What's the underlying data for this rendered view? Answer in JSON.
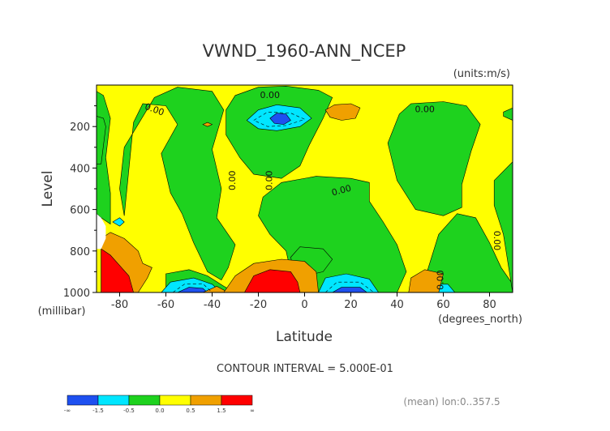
{
  "chart_data": {
    "type": "heatmap",
    "title": "VWND_1960-ANN_NCEP",
    "units_label": "(units:m/s)",
    "ylabel": "Level",
    "yunits_label": "(millibar)",
    "xlabel": "Latitude",
    "xunits_label": "(degrees_north)",
    "xlim": [
      -90,
      90
    ],
    "ylim": [
      0,
      1000
    ],
    "y_inverted": true,
    "x_ticks": [
      {
        "value": -80,
        "label": "-80"
      },
      {
        "value": -60,
        "label": "-60"
      },
      {
        "value": -40,
        "label": "-40"
      },
      {
        "value": -20,
        "label": "-20"
      },
      {
        "value": 0,
        "label": "0"
      },
      {
        "value": 20,
        "label": "20"
      },
      {
        "value": 40,
        "label": "40"
      },
      {
        "value": 60,
        "label": "60"
      },
      {
        "value": 80,
        "label": "80"
      }
    ],
    "y_ticks": [
      {
        "value": 200,
        "label": "200"
      },
      {
        "value": 400,
        "label": "400"
      },
      {
        "value": 600,
        "label": "600"
      },
      {
        "value": 800,
        "label": "800"
      },
      {
        "value": 1000,
        "label": "1000"
      }
    ],
    "contour_interval_text": "CONTOUR INTERVAL = 5.000E-01",
    "contour_labels": [
      {
        "text": "0.00",
        "lat": -15,
        "lev": 50,
        "rot": 0
      },
      {
        "text": "0.00",
        "lat": -65,
        "lev": 120,
        "rot": 20
      },
      {
        "text": "0.00",
        "lat": 52,
        "lev": 120,
        "rot": 0
      },
      {
        "text": "0.00",
        "lat": -31,
        "lev": 460,
        "rot": -90
      },
      {
        "text": "0.00",
        "lat": -15,
        "lev": 460,
        "rot": -90
      },
      {
        "text": "0.00",
        "lat": 16,
        "lev": 510,
        "rot": -15
      },
      {
        "text": "0.00",
        "lat": 83,
        "lev": 750,
        "rot": 90
      },
      {
        "text": "0.00",
        "lat": 59,
        "lev": 940,
        "rot": -90
      }
    ],
    "regions": [
      {
        "class": "g",
        "pts": [
          [
            -90,
            30
          ],
          [
            -90,
            620
          ],
          [
            -88,
            640
          ],
          [
            -84,
            670
          ],
          [
            -84,
            520
          ],
          [
            -86,
            350
          ],
          [
            -84,
            160
          ],
          [
            -87,
            50
          ]
        ]
      },
      {
        "class": "g",
        "pts": [
          [
            -78,
            630
          ],
          [
            -74,
            180
          ],
          [
            -70,
            90
          ],
          [
            -60,
            100
          ],
          [
            -55,
            190
          ],
          [
            -62,
            330
          ],
          [
            -58,
            520
          ],
          [
            -53,
            620
          ],
          [
            -48,
            760
          ],
          [
            -42,
            900
          ],
          [
            -36,
            940
          ],
          [
            -33,
            880
          ],
          [
            -30,
            770
          ],
          [
            -38,
            640
          ],
          [
            -36,
            500
          ],
          [
            -40,
            310
          ],
          [
            -35,
            120
          ],
          [
            -40,
            30
          ],
          [
            -55,
            10
          ],
          [
            -65,
            60
          ],
          [
            -78,
            300
          ],
          [
            -80,
            500
          ]
        ]
      },
      {
        "class": "g",
        "pts": [
          [
            -60,
            1000
          ],
          [
            -60,
            910
          ],
          [
            -50,
            890
          ],
          [
            -42,
            920
          ],
          [
            -35,
            970
          ],
          [
            -30,
            1000
          ]
        ]
      },
      {
        "class": "g",
        "pts": [
          [
            -34,
            120
          ],
          [
            -30,
            50
          ],
          [
            -20,
            10
          ],
          [
            -8,
            5
          ],
          [
            6,
            25
          ],
          [
            12,
            60
          ],
          [
            8,
            160
          ],
          [
            2,
            290
          ],
          [
            -2,
            390
          ],
          [
            -10,
            450
          ],
          [
            -22,
            430
          ],
          [
            -28,
            350
          ],
          [
            -34,
            240
          ]
        ]
      },
      {
        "class": "g",
        "pts": [
          [
            -18,
            540
          ],
          [
            -10,
            470
          ],
          [
            5,
            440
          ],
          [
            20,
            450
          ],
          [
            28,
            470
          ],
          [
            28,
            560
          ],
          [
            34,
            660
          ],
          [
            40,
            770
          ],
          [
            44,
            900
          ],
          [
            40,
            1000
          ],
          [
            -2,
            1000
          ],
          [
            -6,
            900
          ],
          [
            -8,
            800
          ],
          [
            -15,
            720
          ],
          [
            -20,
            630
          ]
        ]
      },
      {
        "class": "g",
        "pts": [
          [
            -6,
            830
          ],
          [
            -2,
            780
          ],
          [
            8,
            790
          ],
          [
            12,
            840
          ],
          [
            8,
            900
          ],
          [
            0,
            920
          ],
          [
            -5,
            880
          ]
        ]
      },
      {
        "class": "g",
        "pts": [
          [
            41,
            140
          ],
          [
            46,
            90
          ],
          [
            60,
            80
          ],
          [
            70,
            100
          ],
          [
            76,
            190
          ],
          [
            72,
            320
          ],
          [
            68,
            480
          ],
          [
            68,
            590
          ],
          [
            60,
            630
          ],
          [
            48,
            600
          ],
          [
            40,
            460
          ],
          [
            36,
            280
          ]
        ]
      },
      {
        "class": "g",
        "pts": [
          [
            50,
            1000
          ],
          [
            53,
            900
          ],
          [
            58,
            720
          ],
          [
            66,
            620
          ],
          [
            74,
            640
          ],
          [
            80,
            760
          ],
          [
            85,
            880
          ],
          [
            90,
            960
          ],
          [
            90,
            1000
          ]
        ]
      },
      {
        "class": "g",
        "pts": [
          [
            82,
            460
          ],
          [
            90,
            370
          ],
          [
            90,
            1000
          ],
          [
            86,
            720
          ],
          [
            82,
            580
          ]
        ]
      },
      {
        "class": "g",
        "pts": [
          [
            -90,
            150
          ],
          [
            -87,
            160
          ],
          [
            -86,
            200
          ],
          [
            -88,
            380
          ],
          [
            -90,
            380
          ]
        ]
      },
      {
        "class": "g",
        "pts": [
          [
            86,
            130
          ],
          [
            90,
            110
          ],
          [
            90,
            170
          ],
          [
            86,
            150
          ]
        ]
      },
      {
        "class": "c",
        "pts": [
          [
            -25,
            170
          ],
          [
            -20,
            120
          ],
          [
            -12,
            95
          ],
          [
            -2,
            110
          ],
          [
            3,
            160
          ],
          [
            -2,
            200
          ],
          [
            -12,
            220
          ],
          [
            -20,
            210
          ]
        ]
      },
      {
        "class": "c",
        "pts": [
          [
            -62,
            1000
          ],
          [
            -58,
            950
          ],
          [
            -48,
            930
          ],
          [
            -40,
            960
          ],
          [
            -36,
            1000
          ]
        ]
      },
      {
        "class": "c",
        "pts": [
          [
            6,
            1000
          ],
          [
            9,
            930
          ],
          [
            18,
            910
          ],
          [
            28,
            935
          ],
          [
            32,
            1000
          ]
        ]
      },
      {
        "class": "c",
        "pts": [
          [
            -83,
            660
          ],
          [
            -80,
            640
          ],
          [
            -78,
            660
          ],
          [
            -80,
            680
          ]
        ]
      },
      {
        "class": "c",
        "pts": [
          [
            55,
            1000
          ],
          [
            58,
            960
          ],
          [
            62,
            960
          ],
          [
            65,
            1000
          ]
        ]
      },
      {
        "class": "b",
        "pts": [
          [
            -15,
            160
          ],
          [
            -12,
            135
          ],
          [
            -8,
            140
          ],
          [
            -6,
            170
          ],
          [
            -9,
            190
          ],
          [
            -13,
            185
          ]
        ]
      },
      {
        "class": "b",
        "pts": [
          [
            -55,
            1000
          ],
          [
            -50,
            975
          ],
          [
            -44,
            980
          ],
          [
            -42,
            1000
          ]
        ]
      },
      {
        "class": "b",
        "pts": [
          [
            12,
            1000
          ],
          [
            16,
            975
          ],
          [
            24,
            975
          ],
          [
            27,
            1000
          ]
        ]
      },
      {
        "class": "o",
        "pts": [
          [
            -88,
            740
          ],
          [
            -84,
            710
          ],
          [
            -78,
            740
          ],
          [
            -72,
            800
          ],
          [
            -70,
            860
          ],
          [
            -66,
            880
          ],
          [
            -68,
            930
          ],
          [
            -72,
            1000
          ],
          [
            -88,
            1000
          ]
        ]
      },
      {
        "class": "o",
        "pts": [
          [
            -44,
            1000
          ],
          [
            -38,
            970
          ],
          [
            -33,
            1000
          ]
        ]
      },
      {
        "class": "o",
        "pts": [
          [
            -35,
            1000
          ],
          [
            -30,
            920
          ],
          [
            -22,
            860
          ],
          [
            -10,
            840
          ],
          [
            0,
            850
          ],
          [
            5,
            900
          ],
          [
            6,
            1000
          ]
        ]
      },
      {
        "class": "o",
        "pts": [
          [
            9,
            120
          ],
          [
            13,
            95
          ],
          [
            20,
            90
          ],
          [
            24,
            110
          ],
          [
            22,
            160
          ],
          [
            16,
            170
          ],
          [
            11,
            155
          ]
        ]
      },
      {
        "class": "o",
        "pts": [
          [
            -44,
            190
          ],
          [
            -42,
            180
          ],
          [
            -40,
            190
          ],
          [
            -42,
            200
          ]
        ]
      },
      {
        "class": "o",
        "pts": [
          [
            45,
            1000
          ],
          [
            46,
            930
          ],
          [
            52,
            890
          ],
          [
            60,
            910
          ],
          [
            58,
            1000
          ]
        ]
      },
      {
        "class": "r",
        "pts": [
          [
            -88,
            790
          ],
          [
            -84,
            820
          ],
          [
            -80,
            870
          ],
          [
            -76,
            920
          ],
          [
            -74,
            1000
          ],
          [
            -88,
            1000
          ]
        ]
      },
      {
        "class": "r",
        "pts": [
          [
            -26,
            1000
          ],
          [
            -22,
            920
          ],
          [
            -15,
            890
          ],
          [
            -6,
            900
          ],
          [
            -3,
            950
          ],
          [
            -2,
            1000
          ]
        ]
      },
      {
        "class": "w",
        "pts": [
          [
            -90,
            620
          ],
          [
            -88,
            640
          ],
          [
            -86,
            680
          ],
          [
            -86,
            740
          ],
          [
            -88,
            790
          ],
          [
            -90,
            790
          ]
        ]
      }
    ],
    "dashed_contours": [
      {
        "class": "c",
        "pts": [
          [
            -22,
            170
          ],
          [
            -16,
            130
          ],
          [
            -6,
            135
          ],
          [
            0,
            165
          ],
          [
            -8,
            195
          ],
          [
            -16,
            200
          ]
        ]
      },
      {
        "class": "c",
        "pts": [
          [
            -57,
            1000
          ],
          [
            -52,
            960
          ],
          [
            -44,
            958
          ],
          [
            -40,
            1000
          ]
        ]
      },
      {
        "class": "c",
        "pts": [
          [
            9,
            1000
          ],
          [
            14,
            950
          ],
          [
            24,
            950
          ],
          [
            30,
            1000
          ]
        ]
      }
    ],
    "colorbar": {
      "colors": [
        "#1e50f0",
        "#00e6ff",
        "#1ed21e",
        "#ffff00",
        "#f0a000",
        "#ff0000"
      ],
      "labels": [
        "-∞",
        "-1.5",
        "-0.5",
        "0.0",
        "0.5",
        "1.5",
        "∞"
      ]
    },
    "footer_text": "(mean) lon:0..357.5"
  }
}
